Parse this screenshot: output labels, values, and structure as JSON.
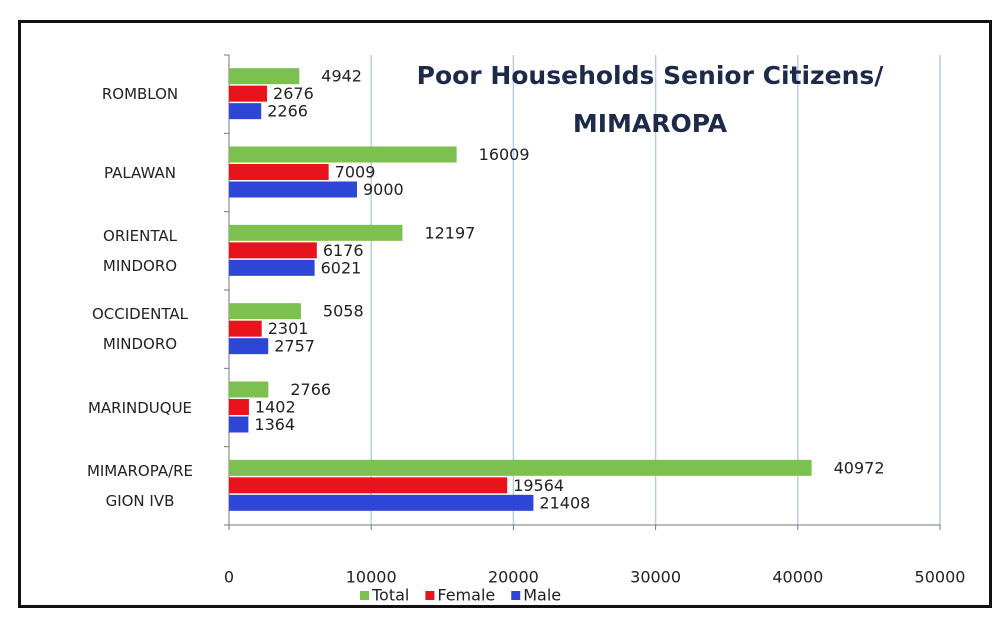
{
  "chart_data": {
    "type": "bar",
    "orientation": "horizontal",
    "title": "Poor Households Senior Citizens/ MIMAROPA",
    "categories": [
      "ROMBLON",
      "PALAWAN",
      "ORIENTAL\nMINDORO",
      "OCCIDENTAL\nMINDORO",
      "MARINDUQUE",
      "MIMAROPA/RE\nGION IVB"
    ],
    "series": [
      {
        "name": "Total",
        "color": "#7cc04f",
        "values": [
          4942,
          16009,
          12197,
          5058,
          2766,
          40972
        ]
      },
      {
        "name": "Female",
        "color": "#e8141c",
        "values": [
          2676,
          7009,
          6176,
          2301,
          1402,
          19564
        ]
      },
      {
        "name": "Male",
        "color": "#2e46d6",
        "values": [
          2266,
          9000,
          6021,
          2757,
          1364,
          21408
        ]
      }
    ],
    "xlim": [
      0,
      50000
    ],
    "xticks": [
      0,
      10000,
      20000,
      30000,
      40000,
      50000
    ],
    "grid": true,
    "legend": "bottom"
  }
}
